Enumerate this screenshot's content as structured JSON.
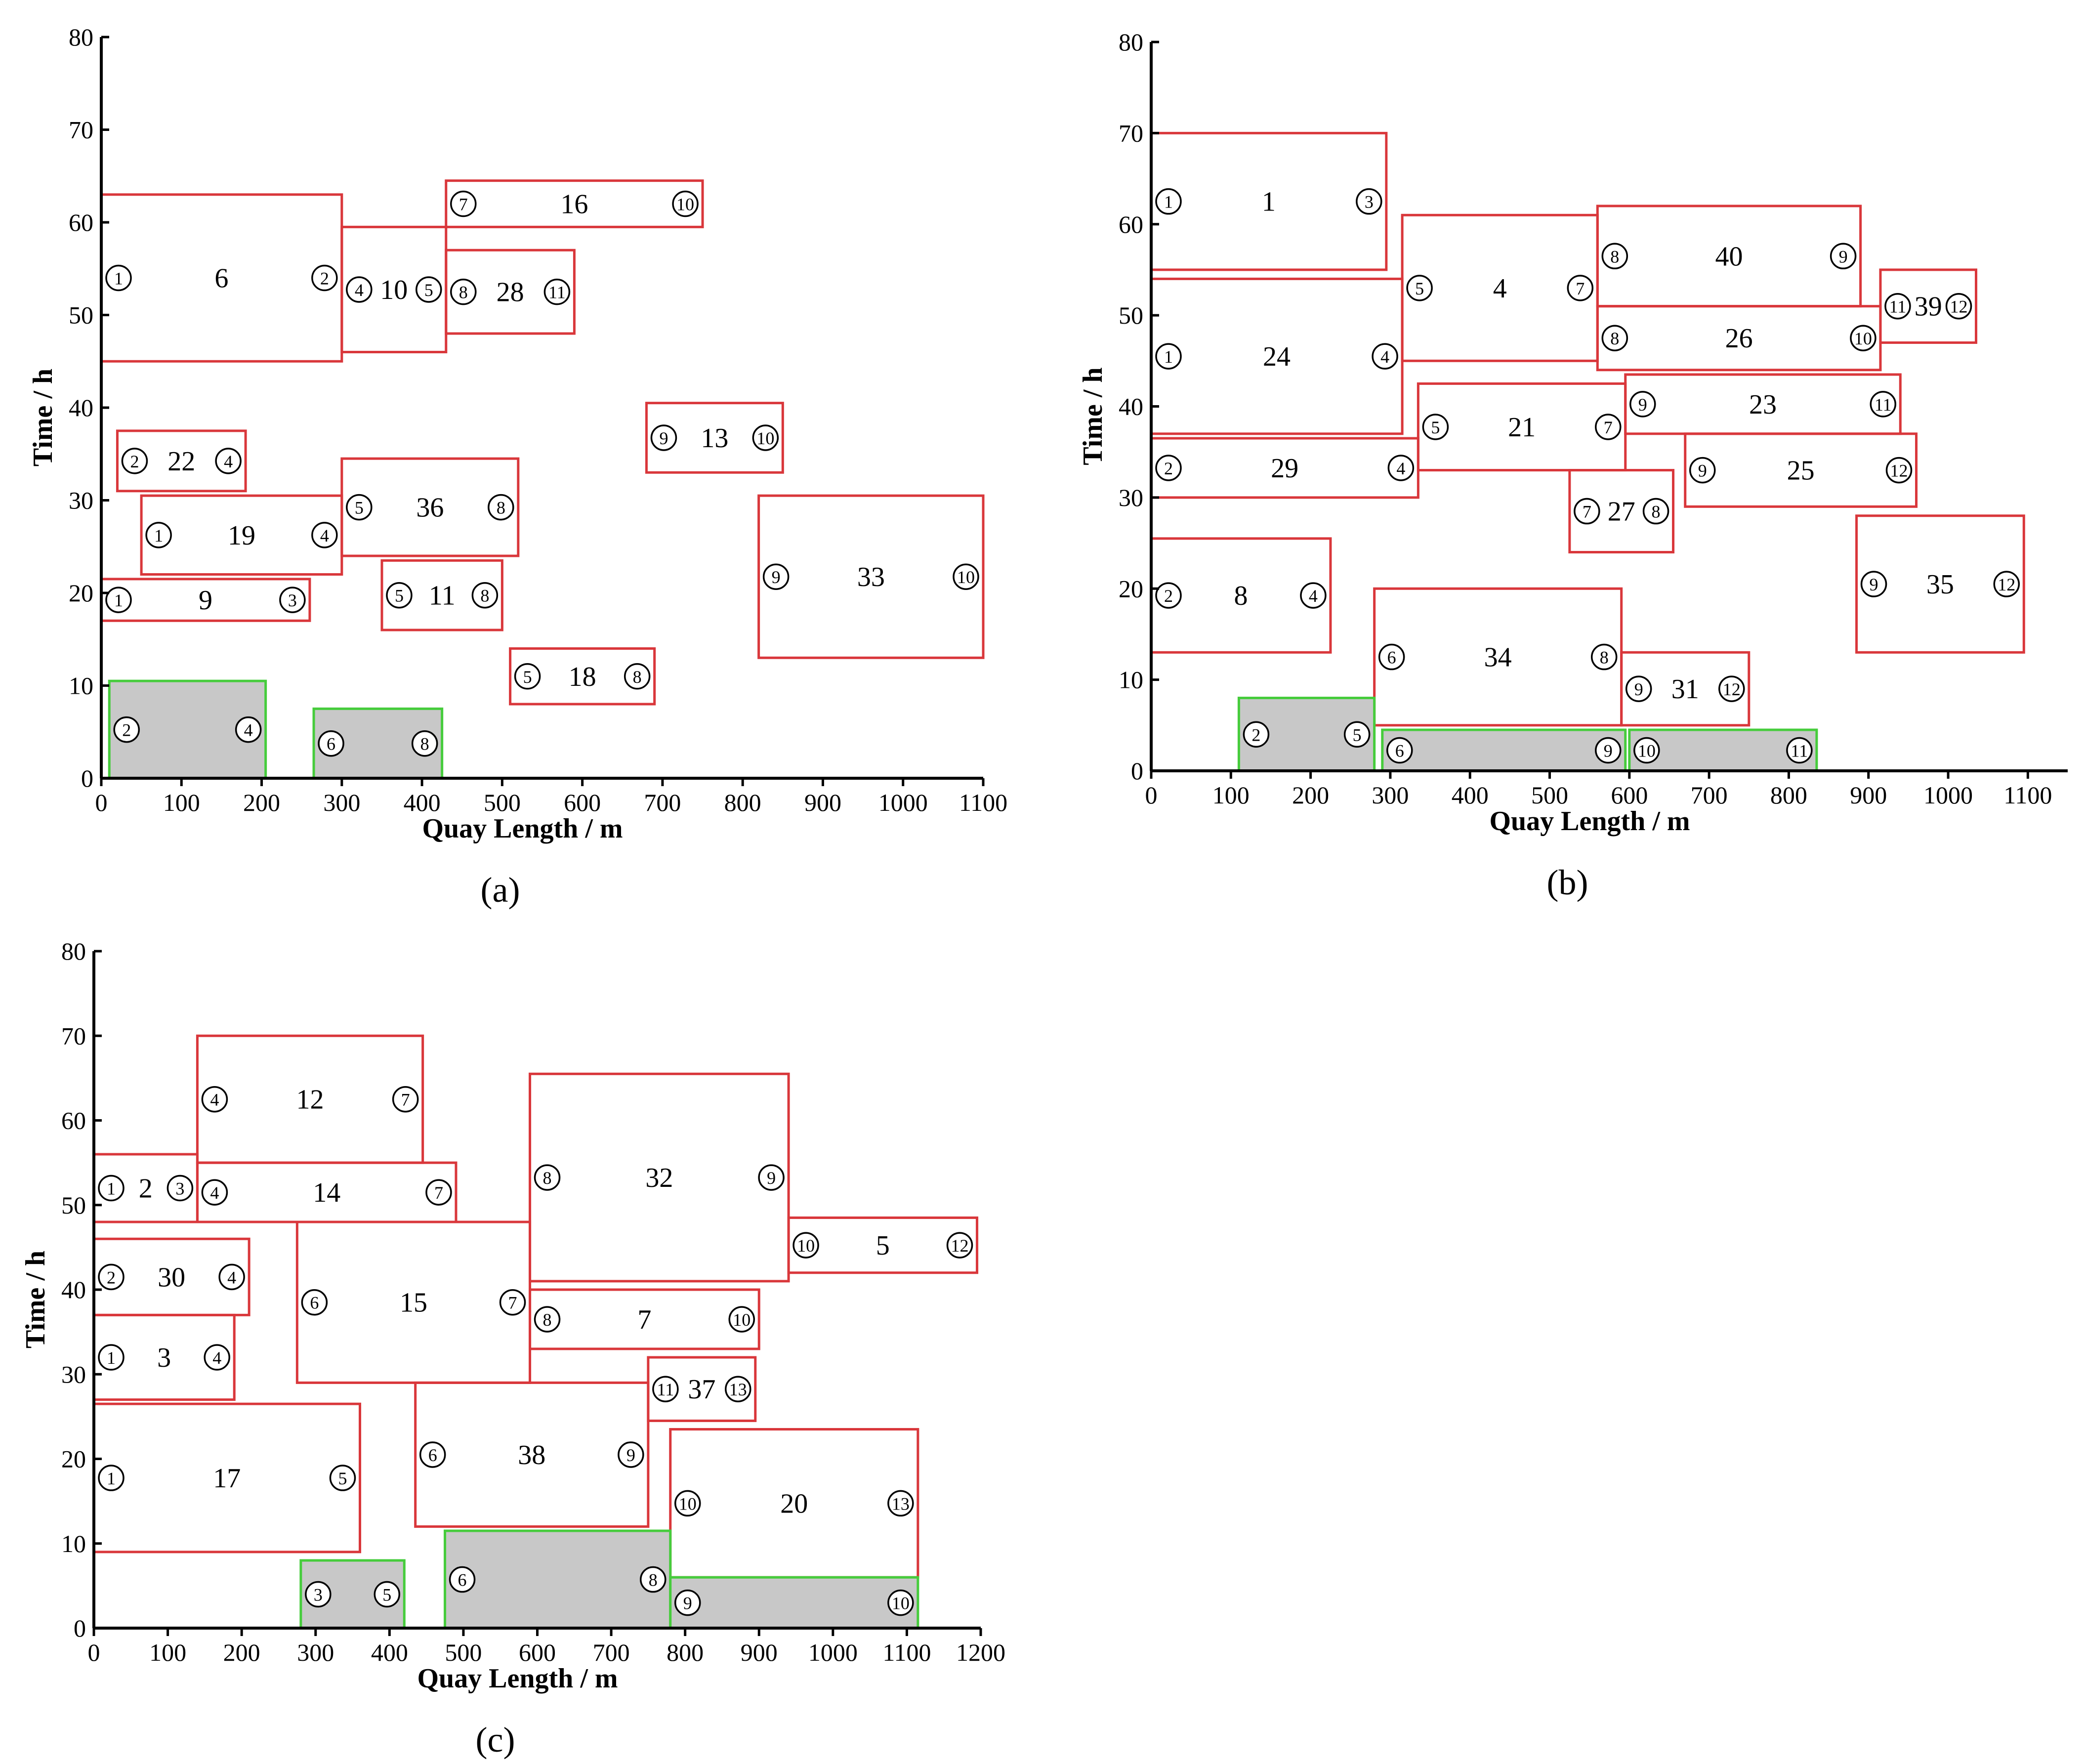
{
  "chart_data": [
    {
      "type": "berth-allocation",
      "panel_label": "(a)",
      "xlabel": "Quay Length / m",
      "ylabel": "Time / h",
      "xlim": [
        0,
        1100
      ],
      "ylim": [
        0,
        80
      ],
      "xticks": [
        0,
        100,
        200,
        300,
        400,
        500,
        600,
        700,
        800,
        900,
        1000,
        1100
      ],
      "yticks": [
        0,
        10,
        20,
        30,
        40,
        50,
        60,
        70,
        80
      ],
      "colors": {
        "planned": "#d9373b",
        "existing": "#46cc3c",
        "existing_fill": "#c8c8c8"
      },
      "vessels": [
        {
          "id": "6",
          "x0": 0,
          "x1": 300,
          "y0": 45,
          "y1": 63,
          "start_crane": "1",
          "end_crane": "2",
          "kind": "planned"
        },
        {
          "id": "10",
          "x0": 300,
          "x1": 430,
          "y0": 46,
          "y1": 59.5,
          "start_crane": "4",
          "end_crane": "5",
          "kind": "planned"
        },
        {
          "id": "28",
          "x0": 430,
          "x1": 590,
          "y0": 48,
          "y1": 57,
          "start_crane": "8",
          "end_crane": "11",
          "kind": "planned"
        },
        {
          "id": "16",
          "x0": 430,
          "x1": 750,
          "y0": 59.5,
          "y1": 64.5,
          "start_crane": "7",
          "end_crane": "10",
          "kind": "planned"
        },
        {
          "id": "22",
          "x0": 20,
          "x1": 180,
          "y0": 31,
          "y1": 37.5,
          "start_crane": "2",
          "end_crane": "4",
          "kind": "planned"
        },
        {
          "id": "19",
          "x0": 50,
          "x1": 300,
          "y0": 22,
          "y1": 30.5,
          "start_crane": "1",
          "end_crane": "4",
          "kind": "planned"
        },
        {
          "id": "36",
          "x0": 300,
          "x1": 520,
          "y0": 24,
          "y1": 34.5,
          "start_crane": "5",
          "end_crane": "8",
          "kind": "planned"
        },
        {
          "id": "9",
          "x0": 0,
          "x1": 260,
          "y0": 17,
          "y1": 21.5,
          "start_crane": "1",
          "end_crane": "3",
          "kind": "planned"
        },
        {
          "id": "11",
          "x0": 350,
          "x1": 500,
          "y0": 16,
          "y1": 23.5,
          "start_crane": "5",
          "end_crane": "8",
          "kind": "planned"
        },
        {
          "id": "13",
          "x0": 680,
          "x1": 850,
          "y0": 33,
          "y1": 40.5,
          "start_crane": "9",
          "end_crane": "10",
          "kind": "planned"
        },
        {
          "id": "33",
          "x0": 820,
          "x1": 1100,
          "y0": 13,
          "y1": 30.5,
          "start_crane": "9",
          "end_crane": "10",
          "kind": "planned"
        },
        {
          "id": "18",
          "x0": 510,
          "x1": 690,
          "y0": 8,
          "y1": 14,
          "start_crane": "5",
          "end_crane": "8",
          "kind": "planned"
        },
        {
          "id": "",
          "x0": 10,
          "x1": 205,
          "y0": 0,
          "y1": 10.5,
          "start_crane": "2",
          "end_crane": "4",
          "kind": "existing"
        },
        {
          "id": "",
          "x0": 265,
          "x1": 425,
          "y0": 0,
          "y1": 7.5,
          "start_crane": "6",
          "end_crane": "8",
          "kind": "existing"
        }
      ]
    },
    {
      "type": "berth-allocation",
      "panel_label": "(b)",
      "xlabel": "Quay Length / m",
      "ylabel": "Time / h",
      "xlim": [
        0,
        1150
      ],
      "ylim": [
        0,
        80
      ],
      "xticks": [
        0,
        100,
        200,
        300,
        400,
        500,
        600,
        700,
        800,
        900,
        1000,
        1100
      ],
      "yticks": [
        0,
        10,
        20,
        30,
        40,
        50,
        60,
        70,
        80
      ],
      "colors": {
        "planned": "#d9373b",
        "existing": "#46cc3c",
        "existing_fill": "#c8c8c8"
      },
      "vessels": [
        {
          "id": "1",
          "x0": 0,
          "x1": 295,
          "y0": 55,
          "y1": 70,
          "start_crane": "1",
          "end_crane": "3",
          "kind": "planned"
        },
        {
          "id": "24",
          "x0": 0,
          "x1": 315,
          "y0": 37,
          "y1": 54,
          "start_crane": "1",
          "end_crane": "4",
          "kind": "planned"
        },
        {
          "id": "4",
          "x0": 315,
          "x1": 560,
          "y0": 45,
          "y1": 61,
          "start_crane": "5",
          "end_crane": "7",
          "kind": "planned"
        },
        {
          "id": "40",
          "x0": 560,
          "x1": 890,
          "y0": 51,
          "y1": 62,
          "start_crane": "8",
          "end_crane": "9",
          "kind": "planned"
        },
        {
          "id": "26",
          "x0": 560,
          "x1": 915,
          "y0": 44,
          "y1": 51,
          "start_crane": "8",
          "end_crane": "10",
          "kind": "planned"
        },
        {
          "id": "39",
          "x0": 915,
          "x1": 1035,
          "y0": 47,
          "y1": 55,
          "start_crane": "11",
          "end_crane": "12",
          "kind": "planned"
        },
        {
          "id": "29",
          "x0": 0,
          "x1": 335,
          "y0": 30,
          "y1": 36.5,
          "start_crane": "2",
          "end_crane": "4",
          "kind": "planned"
        },
        {
          "id": "21",
          "x0": 335,
          "x1": 595,
          "y0": 33,
          "y1": 42.5,
          "start_crane": "5",
          "end_crane": "7",
          "kind": "planned"
        },
        {
          "id": "23",
          "x0": 595,
          "x1": 940,
          "y0": 37,
          "y1": 43.5,
          "start_crane": "9",
          "end_crane": "11",
          "kind": "planned"
        },
        {
          "id": "25",
          "x0": 670,
          "x1": 960,
          "y0": 29,
          "y1": 37,
          "start_crane": "9",
          "end_crane": "12",
          "kind": "planned"
        },
        {
          "id": "27",
          "x0": 525,
          "x1": 655,
          "y0": 24,
          "y1": 33,
          "start_crane": "7",
          "end_crane": "8",
          "kind": "planned"
        },
        {
          "id": "8",
          "x0": 0,
          "x1": 225,
          "y0": 13,
          "y1": 25.5,
          "start_crane": "2",
          "end_crane": "4",
          "kind": "planned"
        },
        {
          "id": "35",
          "x0": 885,
          "x1": 1095,
          "y0": 13,
          "y1": 28,
          "start_crane": "9",
          "end_crane": "12",
          "kind": "planned"
        },
        {
          "id": "34",
          "x0": 280,
          "x1": 590,
          "y0": 5,
          "y1": 20,
          "start_crane": "6",
          "end_crane": "8",
          "kind": "planned"
        },
        {
          "id": "31",
          "x0": 590,
          "x1": 750,
          "y0": 5,
          "y1": 13,
          "start_crane": "9",
          "end_crane": "12",
          "kind": "planned"
        },
        {
          "id": "",
          "x0": 110,
          "x1": 280,
          "y0": 0,
          "y1": 8,
          "start_crane": "2",
          "end_crane": "5",
          "kind": "existing"
        },
        {
          "id": "",
          "x0": 290,
          "x1": 595,
          "y0": 0,
          "y1": 4.5,
          "start_crane": "6",
          "end_crane": "9",
          "kind": "existing"
        },
        {
          "id": "",
          "x0": 600,
          "x1": 835,
          "y0": 0,
          "y1": 4.5,
          "start_crane": "10",
          "end_crane": "11",
          "kind": "existing"
        }
      ]
    },
    {
      "type": "berth-allocation",
      "panel_label": "(c)",
      "xlabel": "Quay Length / m",
      "ylabel": "Time / h",
      "xlim": [
        0,
        1200
      ],
      "ylim": [
        0,
        80
      ],
      "xticks": [
        0,
        100,
        200,
        300,
        400,
        500,
        600,
        700,
        800,
        900,
        1000,
        1100,
        1200
      ],
      "yticks": [
        0,
        10,
        20,
        30,
        40,
        50,
        60,
        70,
        80
      ],
      "colors": {
        "planned": "#d9373b",
        "existing": "#46cc3c",
        "existing_fill": "#c8c8c8"
      },
      "vessels": [
        {
          "id": "12",
          "x0": 140,
          "x1": 445,
          "y0": 55,
          "y1": 70,
          "start_crane": "4",
          "end_crane": "7",
          "kind": "planned"
        },
        {
          "id": "2",
          "x0": 0,
          "x1": 140,
          "y0": 48,
          "y1": 56,
          "start_crane": "1",
          "end_crane": "3",
          "kind": "planned"
        },
        {
          "id": "14",
          "x0": 140,
          "x1": 490,
          "y0": 48,
          "y1": 55,
          "start_crane": "4",
          "end_crane": "7",
          "kind": "planned"
        },
        {
          "id": "32",
          "x0": 590,
          "x1": 940,
          "y0": 41,
          "y1": 65.5,
          "start_crane": "8",
          "end_crane": "9",
          "kind": "planned"
        },
        {
          "id": "5",
          "x0": 940,
          "x1": 1195,
          "y0": 42,
          "y1": 48.5,
          "start_crane": "10",
          "end_crane": "12",
          "kind": "planned"
        },
        {
          "id": "30",
          "x0": 0,
          "x1": 210,
          "y0": 37,
          "y1": 46,
          "start_crane": "2",
          "end_crane": "4",
          "kind": "planned"
        },
        {
          "id": "15",
          "x0": 275,
          "x1": 590,
          "y0": 29,
          "y1": 48,
          "start_crane": "6",
          "end_crane": "7",
          "kind": "planned"
        },
        {
          "id": "7",
          "x0": 590,
          "x1": 900,
          "y0": 33,
          "y1": 40,
          "start_crane": "8",
          "end_crane": "10",
          "kind": "planned"
        },
        {
          "id": "3",
          "x0": 0,
          "x1": 190,
          "y0": 27,
          "y1": 37,
          "start_crane": "1",
          "end_crane": "4",
          "kind": "planned"
        },
        {
          "id": "37",
          "x0": 750,
          "x1": 895,
          "y0": 24.5,
          "y1": 32,
          "start_crane": "11",
          "end_crane": "13",
          "kind": "planned"
        },
        {
          "id": "17",
          "x0": 0,
          "x1": 360,
          "y0": 9,
          "y1": 26.5,
          "start_crane": "1",
          "end_crane": "5",
          "kind": "planned"
        },
        {
          "id": "38",
          "x0": 435,
          "x1": 750,
          "y0": 12,
          "y1": 29,
          "start_crane": "6",
          "end_crane": "9",
          "kind": "planned"
        },
        {
          "id": "20",
          "x0": 780,
          "x1": 1115,
          "y0": 6,
          "y1": 23.5,
          "start_crane": "10",
          "end_crane": "13",
          "kind": "planned"
        },
        {
          "id": "",
          "x0": 280,
          "x1": 420,
          "y0": 0,
          "y1": 8,
          "start_crane": "3",
          "end_crane": "5",
          "kind": "existing"
        },
        {
          "id": "",
          "x0": 475,
          "x1": 780,
          "y0": 0,
          "y1": 11.5,
          "start_crane": "6",
          "end_crane": "8",
          "kind": "existing"
        },
        {
          "id": "",
          "x0": 780,
          "x1": 1115,
          "y0": 0,
          "y1": 6,
          "start_crane": "9",
          "end_crane": "10",
          "kind": "existing"
        }
      ]
    }
  ]
}
